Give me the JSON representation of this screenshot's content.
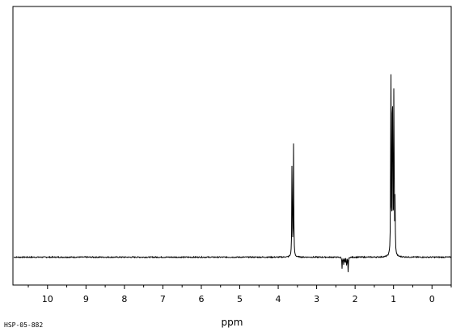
{
  "chart_data": {
    "type": "line",
    "title": "",
    "xlabel": "ppm",
    "ylabel": "",
    "xlim": [
      10.9,
      -0.5
    ],
    "x_direction": "reversed",
    "ylim": [
      0,
      1
    ],
    "grid": false,
    "x_ticks": [
      "10",
      "9",
      "8",
      "7",
      "6",
      "5",
      "4",
      "3",
      "2",
      "1",
      "0"
    ],
    "baseline": 0.1,
    "peaks": [
      {
        "ppm": 3.64,
        "height": 0.53
      },
      {
        "ppm": 3.6,
        "height": 0.52
      },
      {
        "ppm": 2.34,
        "height": 0.06
      },
      {
        "ppm": 2.3,
        "height": 0.07
      },
      {
        "ppm": 2.26,
        "height": 0.07
      },
      {
        "ppm": 2.22,
        "height": 0.06
      },
      {
        "ppm": 2.18,
        "height": 0.045
      },
      {
        "ppm": 1.07,
        "height": 0.89
      },
      {
        "ppm": 1.03,
        "height": 0.97
      },
      {
        "ppm": 0.99,
        "height": 0.85
      },
      {
        "ppm": 0.96,
        "height": 0.3
      }
    ]
  },
  "caption": "HSP-05-882"
}
